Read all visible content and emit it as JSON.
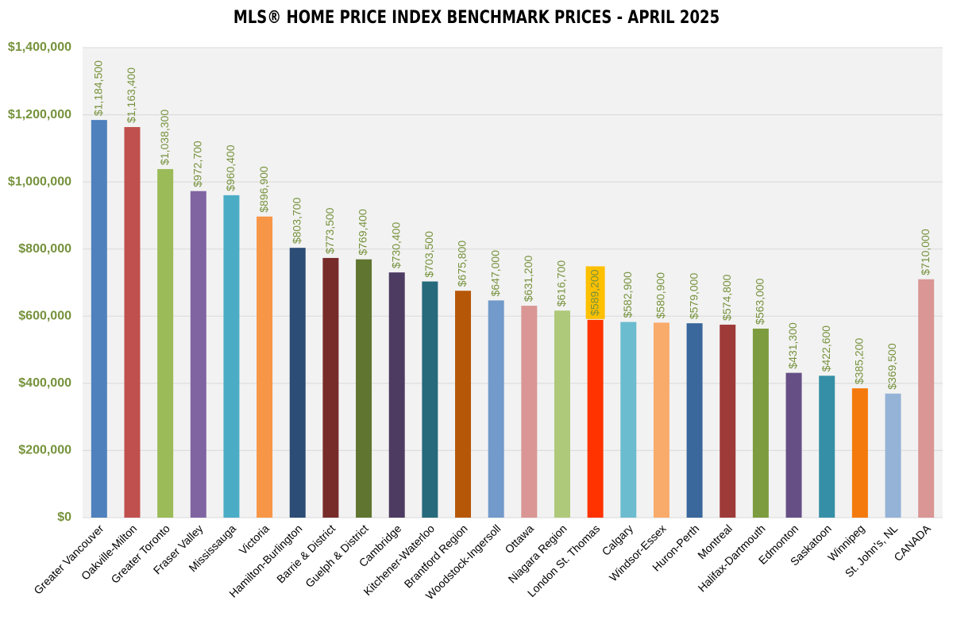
{
  "chart_data": {
    "type": "bar",
    "title": "MLS® HOME PRICE INDEX BENCHMARK PRICES - APRIL 2025",
    "categories": [
      "Greater Vancouver",
      "Oakville-Milton",
      "Greater Toronto",
      "Fraser Valley",
      "Mississauga",
      "Victoria",
      "Hamilton-Burlington",
      "Barrie & District",
      "Guelph & District",
      "Cambridge",
      "Kitchener-Waterloo",
      "Brantford Region",
      "Woodstock-Ingersoll",
      "Ottawa",
      "Niagara Region",
      "London St. Thomas",
      "Calgary",
      "Windsor-Essex",
      "Huron-Perth",
      "Montreal",
      "Halifax-Dartmouth",
      "Edmonton",
      "Saskatoon",
      "Winnipeg",
      "St. John's, NL",
      "CANADA"
    ],
    "values": [
      1184500,
      1163400,
      1038300,
      972700,
      960400,
      896900,
      803700,
      773500,
      769400,
      730400,
      703500,
      675800,
      647000,
      631200,
      616700,
      589200,
      582900,
      580900,
      579000,
      574800,
      563000,
      431300,
      422600,
      385200,
      369500,
      710000
    ],
    "value_labels": [
      "$1,184,500",
      "$1,163,400",
      "$1,038,300",
      "$972,700",
      "$960,400",
      "$896,900",
      "$803,700",
      "$773,500",
      "$769,400",
      "$730,400",
      "$703,500",
      "$675,800",
      "$647,000",
      "$631,200",
      "$616,700",
      "$589,200",
      "$582,900",
      "$580,900",
      "$579,000",
      "$574,800",
      "$563,000",
      "$431,300",
      "$422,600",
      "$385,200",
      "$369,500",
      "$710,000"
    ],
    "colors": [
      "#4f81bd",
      "#c0504d",
      "#9bbb59",
      "#8064a2",
      "#4bacc6",
      "#f79646",
      "#2c4d75",
      "#772c2a",
      "#5f7530",
      "#4d3b62",
      "#276a7c",
      "#b65708",
      "#729aca",
      "#d99694",
      "#afc97a",
      "#ff3300",
      "#6cbcd0",
      "#f9ab6b",
      "#3a679c",
      "#9e3b38",
      "#7d9c3f",
      "#664f85",
      "#358fa6",
      "#f47a0e",
      "#95b3d7",
      "#d99694"
    ],
    "label_color": "#76923c",
    "label_highlight": {
      "index": 15,
      "color": "#ffc000"
    },
    "ylim": [
      0,
      1400000
    ],
    "yticks": [
      {
        "value": 0,
        "label": "$0"
      },
      {
        "value": 200000,
        "label": "$200,000"
      },
      {
        "value": 400000,
        "label": "$400,000"
      },
      {
        "value": 600000,
        "label": "$600,000"
      },
      {
        "value": 800000,
        "label": "$800,000"
      },
      {
        "value": 1000000,
        "label": "$1,000,000"
      },
      {
        "value": 1200000,
        "label": "$1,200,000"
      },
      {
        "value": 1400000,
        "label": "$1,400,000"
      }
    ],
    "grid": true
  }
}
